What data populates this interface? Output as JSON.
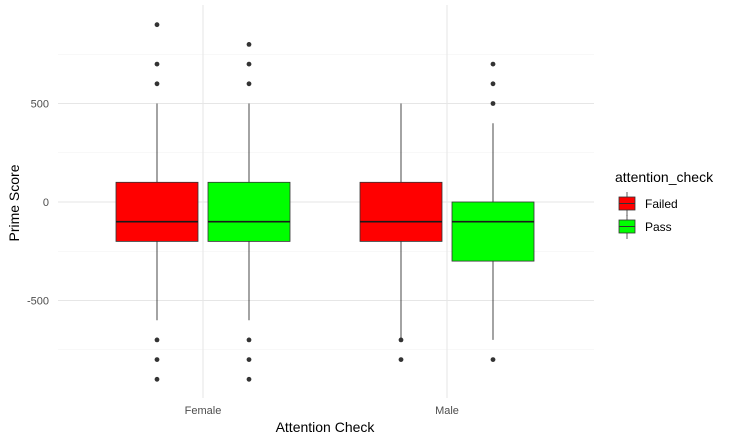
{
  "chart_data": {
    "type": "boxplot",
    "xlabel": "Attention Check",
    "ylabel": "Prime Score",
    "categories": [
      "Female",
      "Male"
    ],
    "ylim": [
      -1000,
      1000
    ],
    "yticks": [
      -500,
      0,
      500
    ],
    "grid": true,
    "legend": {
      "title": "attention_check",
      "position": "right",
      "entries": [
        {
          "label": "Failed",
          "color": "#ff0000"
        },
        {
          "label": "Pass",
          "color": "#00ff00"
        }
      ]
    },
    "series": [
      {
        "name": "Failed",
        "color": "#ff0000",
        "boxes": [
          {
            "category": "Female",
            "q1": -200,
            "median": -100,
            "q3": 100,
            "whisker_low": -600,
            "whisker_high": 500,
            "outliers": [
              900,
              700,
              600,
              -700,
              -800,
              -900
            ]
          },
          {
            "category": "Male",
            "q1": -200,
            "median": -100,
            "q3": 100,
            "whisker_low": -700,
            "whisker_high": 500,
            "outliers": [
              -700,
              -800
            ]
          }
        ]
      },
      {
        "name": "Pass",
        "color": "#00ff00",
        "boxes": [
          {
            "category": "Female",
            "q1": -200,
            "median": -100,
            "q3": 100,
            "whisker_low": -600,
            "whisker_high": 500,
            "outliers": [
              800,
              700,
              600,
              -700,
              -800,
              -900
            ]
          },
          {
            "category": "Male",
            "q1": -300,
            "median": -100,
            "q3": 0,
            "whisker_low": -700,
            "whisker_high": 400,
            "outliers": [
              700,
              600,
              500,
              -800
            ]
          }
        ]
      }
    ]
  }
}
